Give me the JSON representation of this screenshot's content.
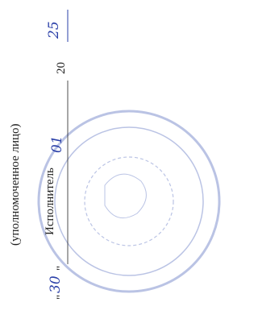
{
  "signature_block": {
    "role_note": "(уполномоченное лицо)",
    "role": "Исполнитель",
    "date": {
      "open_quote": "\"",
      "day": "30",
      "close_quote": "\"",
      "month": "01",
      "century": "20",
      "year": "25"
    }
  }
}
